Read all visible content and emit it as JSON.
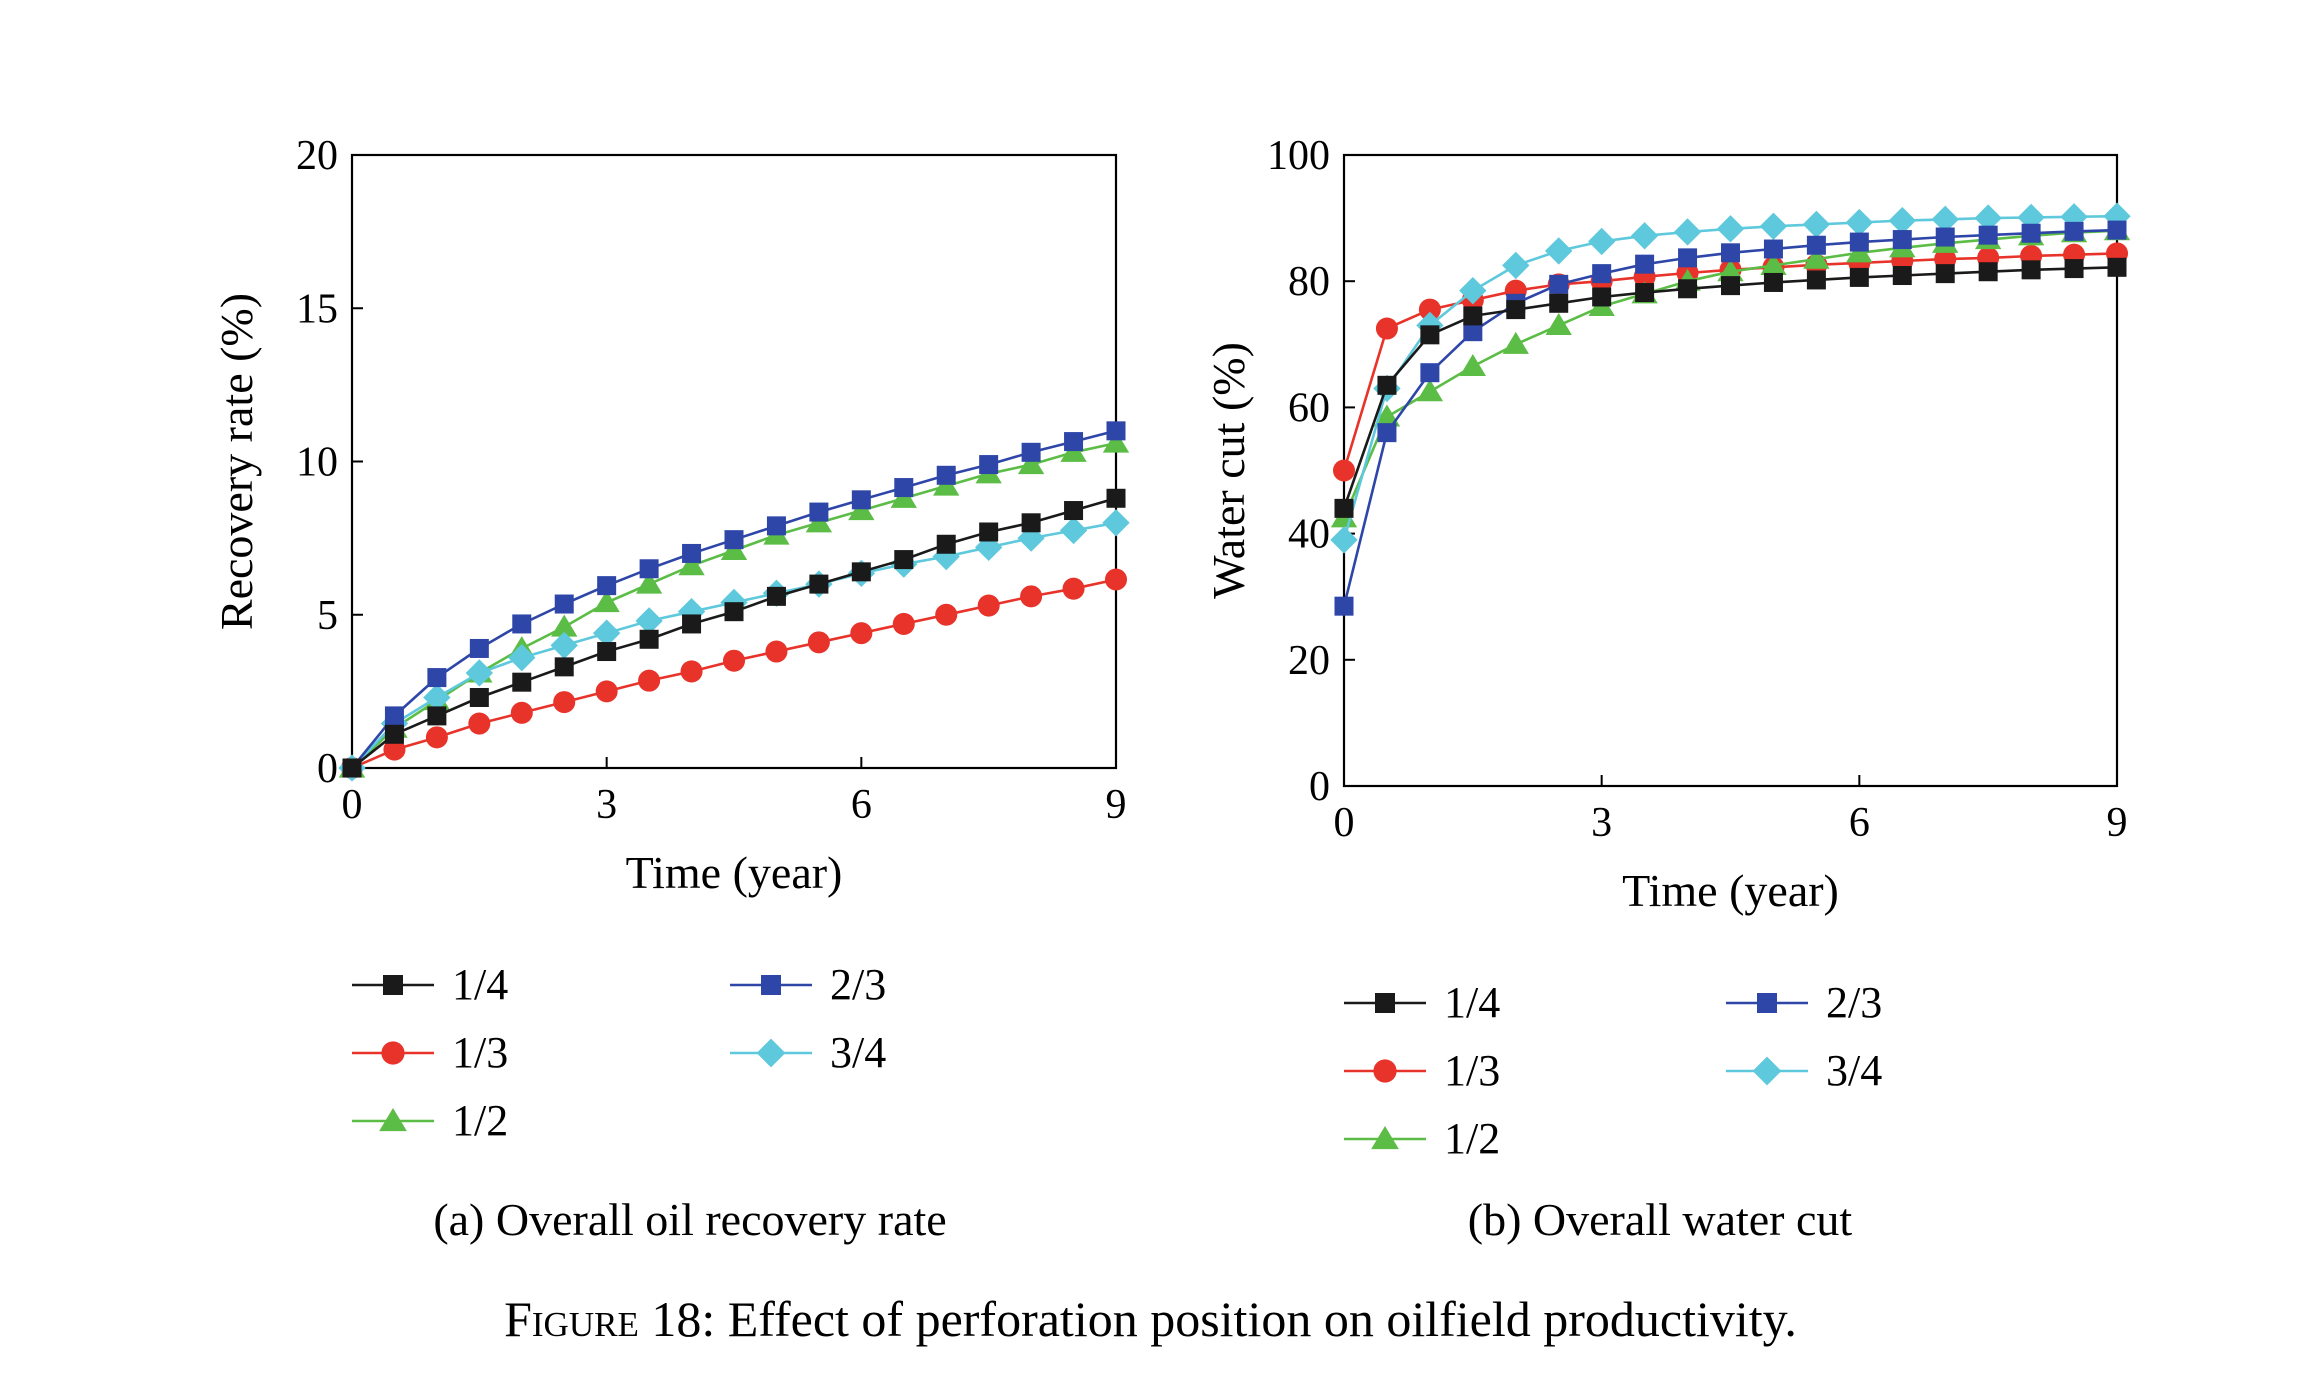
{
  "figure_caption": {
    "label": "Figure 18:",
    "text": "Effect of perforation position on oilfield productivity."
  },
  "colors": {
    "1/4": "#1a1a1a",
    "1/3": "#e8332a",
    "1/2": "#5bbd45",
    "2/3": "#2e46a8",
    "3/4": "#5ec9dc"
  },
  "chart_data": [
    {
      "type": "line",
      "panel_caption": "(a) Overall oil recovery rate",
      "xlabel": "Time (year)",
      "ylabel": "Recovery rate (%)",
      "xlim": [
        0,
        9
      ],
      "ylim": [
        0,
        20
      ],
      "xticks": [
        0,
        3,
        6,
        9
      ],
      "yticks": [
        0,
        5,
        10,
        15,
        20
      ],
      "x": [
        0,
        0.5,
        1,
        1.5,
        2,
        2.5,
        3,
        3.5,
        4,
        4.5,
        5,
        5.5,
        6,
        6.5,
        7,
        7.5,
        8,
        8.5,
        9
      ],
      "legend_columns": [
        [
          "1/4",
          "1/3",
          "1/2"
        ],
        [
          "2/3",
          "3/4"
        ]
      ],
      "series": [
        {
          "name": "1/4",
          "marker": "square",
          "values": [
            0,
            1.1,
            1.7,
            2.3,
            2.8,
            3.3,
            3.8,
            4.2,
            4.7,
            5.1,
            5.6,
            6.0,
            6.4,
            6.8,
            7.3,
            7.7,
            8.0,
            8.4,
            8.8
          ]
        },
        {
          "name": "1/3",
          "marker": "circle",
          "values": [
            0,
            0.6,
            1.0,
            1.45,
            1.8,
            2.15,
            2.5,
            2.85,
            3.15,
            3.5,
            3.8,
            4.1,
            4.4,
            4.7,
            5.0,
            5.3,
            5.6,
            5.85,
            6.15
          ]
        },
        {
          "name": "1/2",
          "marker": "triangle",
          "values": [
            0,
            1.3,
            2.2,
            3.1,
            3.9,
            4.6,
            5.4,
            6.0,
            6.6,
            7.1,
            7.6,
            8.0,
            8.4,
            8.8,
            9.2,
            9.6,
            9.9,
            10.3,
            10.6
          ]
        },
        {
          "name": "2/3",
          "marker": "square",
          "values": [
            0,
            1.7,
            2.95,
            3.9,
            4.7,
            5.35,
            5.95,
            6.5,
            7.0,
            7.45,
            7.9,
            8.35,
            8.75,
            9.15,
            9.55,
            9.9,
            10.3,
            10.65,
            11.0
          ]
        },
        {
          "name": "3/4",
          "marker": "diamond",
          "values": [
            0,
            1.45,
            2.3,
            3.1,
            3.6,
            4.0,
            4.4,
            4.8,
            5.1,
            5.4,
            5.7,
            6.0,
            6.35,
            6.65,
            6.9,
            7.2,
            7.5,
            7.75,
            8.0
          ]
        }
      ]
    },
    {
      "type": "line",
      "panel_caption": "(b) Overall water cut",
      "xlabel": "Time (year)",
      "ylabel": "Water cut (%)",
      "xlim": [
        0,
        9
      ],
      "ylim": [
        0,
        100
      ],
      "xticks": [
        0,
        3,
        6,
        9
      ],
      "yticks": [
        0,
        20,
        40,
        60,
        80,
        100
      ],
      "x": [
        0,
        0.5,
        1,
        1.5,
        2,
        2.5,
        3,
        3.5,
        4,
        4.5,
        5,
        5.5,
        6,
        6.5,
        7,
        7.5,
        8,
        8.5,
        9
      ],
      "legend_columns": [
        [
          "1/4",
          "1/3",
          "1/2"
        ],
        [
          "2/3",
          "3/4"
        ]
      ],
      "series": [
        {
          "name": "1/4",
          "marker": "square",
          "values": [
            44,
            63.5,
            71.5,
            74.5,
            75.5,
            76.5,
            77.5,
            78.2,
            78.8,
            79.3,
            79.8,
            80.2,
            80.6,
            80.9,
            81.2,
            81.5,
            81.8,
            82.0,
            82.2
          ]
        },
        {
          "name": "1/3",
          "marker": "circle",
          "values": [
            50,
            72.5,
            75.5,
            77.0,
            78.5,
            79.5,
            80.0,
            80.7,
            81.3,
            81.8,
            82.2,
            82.6,
            82.9,
            83.2,
            83.5,
            83.7,
            84.0,
            84.2,
            84.4
          ]
        },
        {
          "name": "1/2",
          "marker": "triangle",
          "values": [
            42.5,
            58.5,
            62.5,
            66.5,
            70.0,
            73.0,
            76.0,
            78.0,
            80.0,
            81.5,
            82.5,
            83.5,
            84.5,
            85.3,
            86.0,
            86.6,
            87.2,
            87.7,
            88.0
          ]
        },
        {
          "name": "2/3",
          "marker": "square",
          "values": [
            28.5,
            56.0,
            65.5,
            72.0,
            76.5,
            79.5,
            81.2,
            82.7,
            83.7,
            84.5,
            85.1,
            85.7,
            86.2,
            86.6,
            87.0,
            87.3,
            87.6,
            87.9,
            88.1
          ]
        },
        {
          "name": "3/4",
          "marker": "diamond",
          "values": [
            39.0,
            63.0,
            73.0,
            78.5,
            82.5,
            84.8,
            86.3,
            87.2,
            87.8,
            88.3,
            88.7,
            89.0,
            89.3,
            89.6,
            89.8,
            90.0,
            90.1,
            90.2,
            90.3
          ]
        }
      ]
    }
  ]
}
